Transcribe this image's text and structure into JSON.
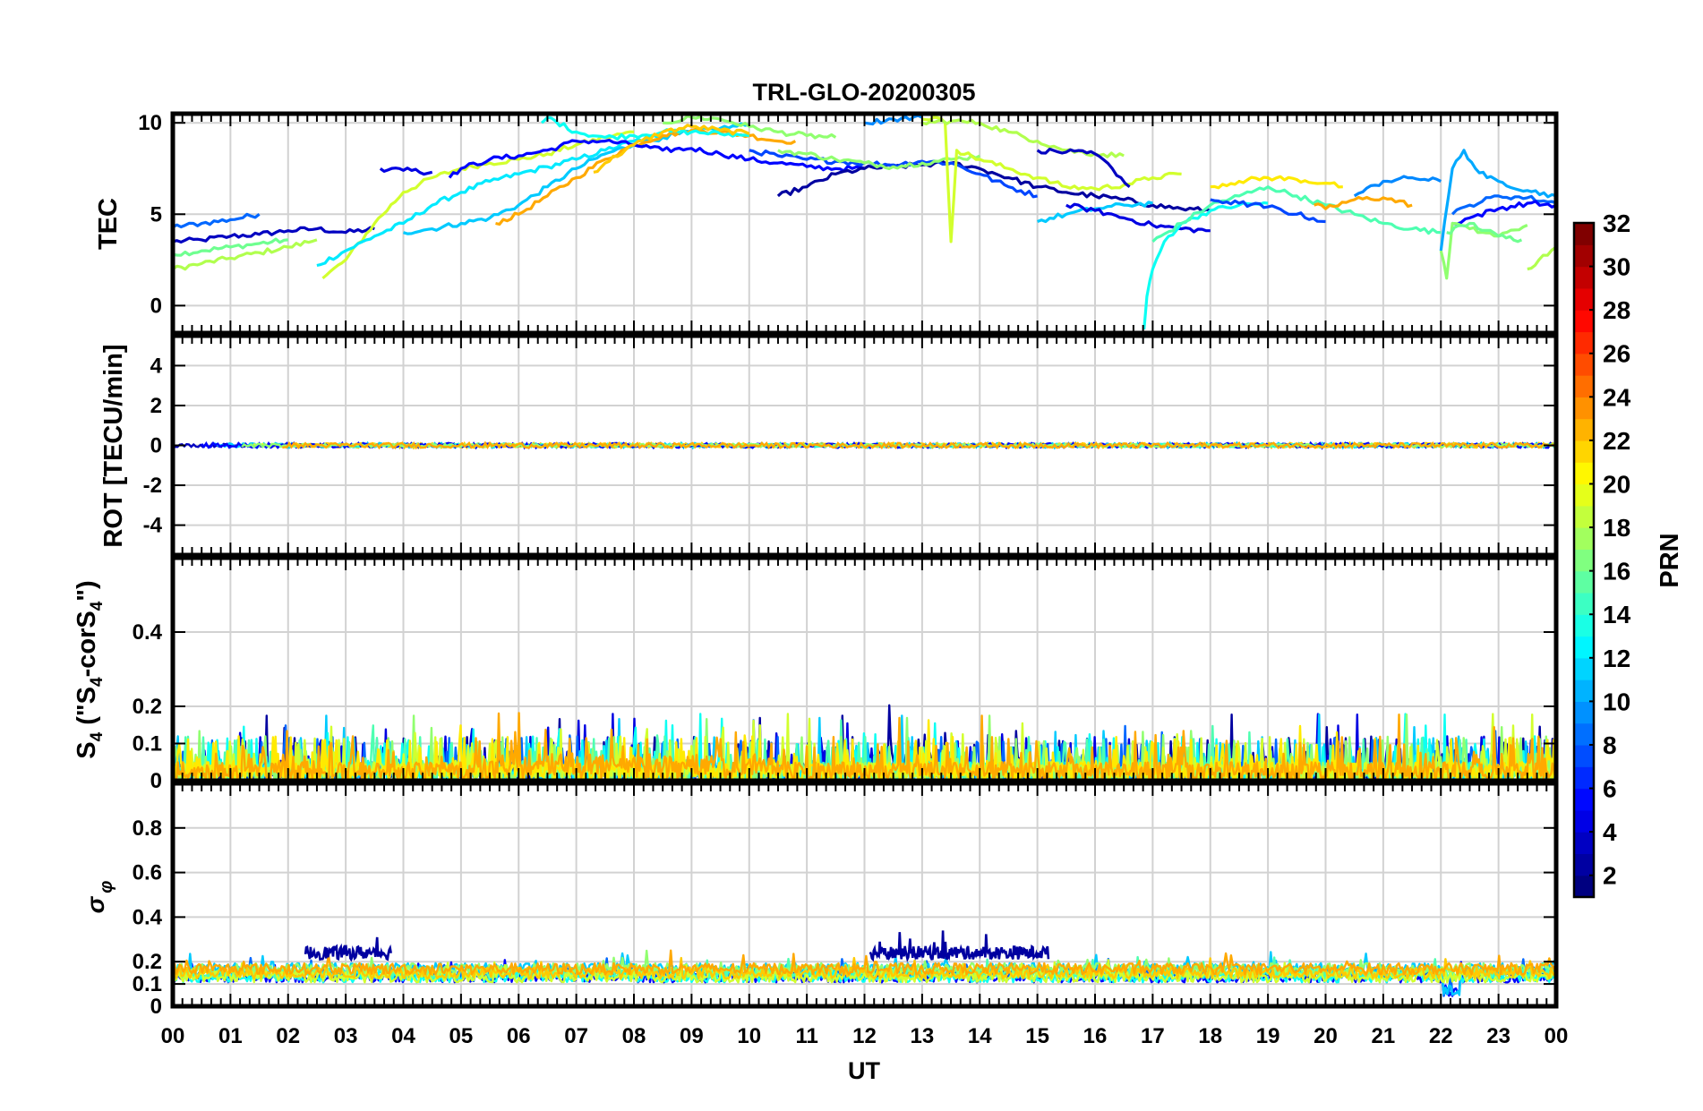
{
  "chart_data": {
    "type": "line",
    "title": "TRL-GLO-20200305",
    "xlabel": "UT",
    "x_tick_labels": [
      "00",
      "01",
      "02",
      "03",
      "04",
      "05",
      "06",
      "07",
      "08",
      "09",
      "10",
      "11",
      "12",
      "13",
      "14",
      "15",
      "16",
      "17",
      "18",
      "19",
      "20",
      "21",
      "22",
      "23",
      "00"
    ],
    "xlim": [
      0,
      24
    ],
    "grid": true,
    "colorbar": {
      "label": "PRN",
      "range": [
        1,
        32
      ],
      "tick_labels": [
        "2",
        "4",
        "6",
        "8",
        "10",
        "12",
        "14",
        "16",
        "18",
        "20",
        "22",
        "24",
        "26",
        "28",
        "30",
        "32"
      ],
      "colormap": "jet"
    },
    "panels": [
      {
        "ylabel": "TEC",
        "ylim": [
          -1.5,
          10.5
        ],
        "y_ticks": [
          0,
          5,
          10
        ],
        "y_tick_labels": [
          "0",
          "5",
          "10"
        ],
        "series": [
          {
            "prn": 3,
            "x": [
              0.0,
              0.5,
              1.0,
              1.5,
              2.0,
              2.5,
              3.0,
              3.5
            ],
            "values": [
              3.5,
              3.6,
              3.8,
              3.9,
              4.1,
              4.2,
              4.0,
              4.2
            ]
          },
          {
            "prn": 8,
            "x": [
              0.0,
              0.5,
              1.0,
              1.5
            ],
            "values": [
              4.3,
              4.5,
              4.7,
              5.0
            ]
          },
          {
            "prn": 16,
            "x": [
              0.0,
              0.5,
              1.0,
              1.5,
              2.0
            ],
            "values": [
              2.8,
              3.0,
              3.2,
              3.4,
              3.6
            ]
          },
          {
            "prn": 18,
            "x": [
              0.0,
              0.5,
              1.0,
              1.5,
              2.0,
              2.5
            ],
            "values": [
              2.0,
              2.3,
              2.6,
              2.9,
              3.2,
              3.6
            ]
          },
          {
            "prn": 4,
            "x": [
              3.6,
              4.0,
              4.5
            ],
            "values": [
              7.5,
              7.4,
              7.3
            ]
          },
          {
            "prn": 19,
            "x": [
              2.6,
              3.0,
              3.5,
              4.0,
              4.5,
              5.0,
              5.5,
              6.0,
              6.5,
              7.0,
              7.5,
              8.0
            ],
            "values": [
              1.5,
              2.5,
              4.5,
              6.2,
              7.0,
              7.5,
              7.8,
              8.0,
              8.3,
              8.8,
              9.2,
              9.5
            ]
          },
          {
            "prn": 12,
            "x": [
              2.5,
              3.0,
              3.5,
              4.0,
              4.5,
              5.0,
              5.5,
              6.0,
              6.5,
              7.0,
              7.5,
              8.0,
              8.5
            ],
            "values": [
              2.2,
              3.0,
              3.8,
              4.5,
              5.5,
              6.2,
              6.8,
              7.2,
              7.6,
              8.0,
              8.5,
              9.0,
              9.3
            ]
          },
          {
            "prn": 11,
            "x": [
              4.0,
              4.5,
              5.0,
              5.5,
              6.0,
              6.5,
              7.0,
              7.5,
              8.0,
              8.5,
              9.0,
              9.5,
              10.0
            ],
            "values": [
              4.0,
              4.2,
              4.5,
              4.8,
              5.5,
              6.5,
              7.5,
              8.3,
              8.8,
              9.2,
              9.5,
              9.7,
              9.9
            ]
          },
          {
            "prn": 23,
            "x": [
              5.6,
              6.0,
              6.5,
              7.0,
              7.5,
              8.0,
              8.5,
              9.0,
              9.5,
              10.0,
              10.5,
              10.8
            ],
            "values": [
              4.5,
              5.0,
              6.0,
              7.0,
              8.0,
              8.8,
              9.3,
              9.6,
              9.5,
              9.3,
              9.0,
              9.0
            ]
          },
          {
            "prn": 5,
            "x": [
              4.8,
              5.0,
              5.5,
              6.0,
              6.5,
              7.0,
              7.5,
              8.0,
              8.5,
              9.0,
              9.5,
              10.0,
              10.5,
              11.0,
              11.5,
              12.0
            ],
            "values": [
              7.0,
              7.5,
              8.0,
              8.2,
              8.5,
              9.0,
              9.0,
              8.8,
              8.5,
              8.6,
              8.3,
              8.0,
              7.8,
              7.6,
              7.5,
              7.5
            ]
          },
          {
            "prn": 13,
            "x": [
              6.4,
              6.5,
              7.0,
              7.5,
              8.0,
              8.5,
              9.0,
              9.5,
              10.0
            ],
            "values": [
              10.0,
              10.3,
              9.5,
              9.2,
              9.3,
              9.5,
              9.5,
              9.4,
              9.3
            ]
          },
          {
            "prn": 22,
            "x": [
              7.3,
              7.5,
              8.0,
              8.5,
              9.0,
              9.5,
              10.0
            ],
            "values": [
              7.3,
              7.8,
              8.8,
              9.5,
              9.8,
              9.6,
              9.4
            ]
          },
          {
            "prn": 17,
            "x": [
              8.5,
              9.0,
              9.5,
              10.0,
              10.5,
              11.0,
              11.5
            ],
            "values": [
              10.0,
              10.3,
              10.2,
              9.8,
              9.5,
              9.3,
              9.2
            ]
          },
          {
            "prn": 2,
            "x": [
              10.5,
              11.0,
              11.5,
              12.0,
              12.5,
              13.0,
              13.5,
              14.0,
              14.5,
              15.0,
              15.5,
              16.0,
              16.5,
              17.0,
              17.5,
              18.0
            ],
            "values": [
              6.0,
              6.5,
              7.2,
              7.5,
              7.6,
              7.7,
              7.8,
              7.5,
              7.0,
              6.5,
              6.2,
              6.0,
              5.8,
              5.5,
              5.3,
              5.2
            ]
          },
          {
            "prn": 7,
            "x": [
              10.0,
              10.5,
              11.0,
              11.5,
              12.0,
              12.5,
              13.0,
              13.5,
              14.0,
              14.5,
              15.0
            ],
            "values": [
              8.5,
              8.2,
              8.0,
              7.9,
              7.8,
              7.7,
              7.9,
              7.8,
              7.2,
              6.5,
              6.0
            ]
          },
          {
            "prn": 9,
            "x": [
              12.0,
              12.5,
              13.0
            ],
            "values": [
              10.0,
              10.2,
              10.3
            ]
          },
          {
            "prn": 17,
            "x": [
              10.5,
              11.0,
              11.5,
              12.0,
              12.5,
              13.0,
              13.5,
              14.0
            ],
            "values": [
              8.5,
              8.3,
              8.0,
              7.8,
              7.6,
              7.8,
              8.0,
              8.2
            ]
          },
          {
            "prn": 19,
            "x": [
              13.0,
              13.2,
              13.4,
              13.5,
              13.6,
              14.0,
              14.5,
              15.0,
              15.5,
              16.0,
              16.5,
              17.0,
              17.5
            ],
            "values": [
              10.2,
              10.3,
              10.0,
              3.5,
              8.5,
              8.0,
              7.5,
              7.0,
              6.5,
              6.4,
              6.6,
              7.0,
              7.2
            ]
          },
          {
            "prn": 18,
            "x": [
              13.0,
              13.5,
              14.0,
              14.5,
              15.0,
              15.5,
              16.0,
              16.5
            ],
            "values": [
              10.0,
              10.1,
              10.0,
              9.5,
              9.0,
              8.5,
              8.3,
              8.2
            ]
          },
          {
            "prn": 3,
            "x": [
              15.0,
              15.5,
              16.0,
              16.3,
              16.6
            ],
            "values": [
              8.5,
              8.4,
              8.3,
              7.5,
              6.5
            ]
          },
          {
            "prn": 11,
            "x": [
              15.0,
              15.5,
              16.0,
              16.5,
              17.0
            ],
            "values": [
              4.6,
              5.0,
              5.3,
              5.5,
              5.6
            ]
          },
          {
            "prn": 4,
            "x": [
              15.5,
              16.0,
              16.5,
              17.0,
              17.5,
              18.0
            ],
            "values": [
              5.5,
              5.2,
              4.8,
              4.4,
              4.2,
              4.1
            ]
          },
          {
            "prn": 13,
            "x": [
              16.85,
              16.9,
              17.0,
              17.2,
              17.5,
              18.0,
              18.5,
              19.0
            ],
            "values": [
              -1.3,
              0.5,
              2.0,
              3.5,
              4.5,
              5.2,
              5.5,
              5.6
            ]
          },
          {
            "prn": 15,
            "x": [
              17.0,
              17.5,
              18.0,
              18.5,
              19.0,
              19.5,
              20.0,
              20.5,
              21.0,
              21.5,
              22.0
            ],
            "values": [
              3.5,
              4.5,
              5.5,
              6.0,
              6.5,
              6.0,
              5.5,
              5.0,
              4.5,
              4.2,
              4.0
            ]
          },
          {
            "prn": 21,
            "x": [
              18.0,
              18.5,
              19.0,
              19.5,
              20.0,
              20.3
            ],
            "values": [
              6.5,
              6.8,
              7.0,
              6.9,
              6.7,
              6.5
            ]
          },
          {
            "prn": 23,
            "x": [
              19.8,
              20.0,
              20.5,
              21.0,
              21.5
            ],
            "values": [
              5.5,
              5.3,
              5.8,
              5.9,
              5.5
            ]
          },
          {
            "prn": 9,
            "x": [
              20.5,
              21.0,
              21.5,
              22.0
            ],
            "values": [
              6.0,
              6.8,
              7.0,
              6.8
            ]
          },
          {
            "prn": 7,
            "x": [
              18.0,
              18.5,
              19.0,
              19.5,
              20.0
            ],
            "values": [
              5.8,
              5.6,
              5.4,
              5.0,
              4.6
            ]
          },
          {
            "prn": 10,
            "x": [
              22.0,
              22.2,
              22.4,
              22.6,
              22.8,
              23.0,
              23.5,
              24.0
            ],
            "values": [
              3.0,
              7.5,
              8.5,
              7.5,
              7.0,
              6.8,
              6.3,
              6.0
            ]
          },
          {
            "prn": 8,
            "x": [
              22.2,
              22.5,
              23.0,
              23.5,
              24.0
            ],
            "values": [
              5.0,
              5.5,
              6.0,
              5.9,
              5.6
            ]
          },
          {
            "prn": 5,
            "x": [
              22.2,
              22.5,
              23.0,
              23.5,
              24.0
            ],
            "values": [
              4.5,
              4.8,
              5.3,
              5.6,
              5.5
            ]
          },
          {
            "prn": 17,
            "x": [
              22.0,
              22.1,
              22.2,
              22.5,
              23.0,
              23.5
            ],
            "values": [
              3.0,
              1.5,
              4.5,
              4.2,
              3.8,
              4.4
            ]
          },
          {
            "prn": 16,
            "x": [
              22.1,
              22.5,
              23.0,
              23.4
            ],
            "values": [
              4.0,
              4.5,
              3.8,
              3.6
            ]
          },
          {
            "prn": 18,
            "x": [
              23.5,
              23.7,
              24.0
            ],
            "values": [
              2.0,
              2.5,
              3.2
            ]
          }
        ]
      },
      {
        "ylabel": "ROT [TECU/min]",
        "ylim": [
          -5.5,
          5.5
        ],
        "y_ticks": [
          -4,
          -2,
          0,
          2,
          4
        ],
        "y_tick_labels": [
          "-4",
          "-2",
          "0",
          "2",
          "4"
        ],
        "mean_value": 0,
        "noise_amplitude": 0.2
      },
      {
        "ylabel": "S4 (\"S4-corS4\")",
        "ylabel_parts": [
          "S",
          "4",
          " (\"S",
          "4",
          "-corS",
          "4",
          "\")"
        ],
        "ylim": [
          0,
          0.6
        ],
        "y_ticks": [
          0,
          0.1,
          0.2,
          0.4
        ],
        "y_tick_labels": [
          "0",
          "0.1",
          "0.2",
          "0.4"
        ],
        "typical_range": [
          0.0,
          0.12
        ],
        "max_spikes": 0.18
      },
      {
        "ylabel": "σ φ",
        "ylabel_symbols": [
          "σ",
          "φ"
        ],
        "ylim": [
          0,
          1.0
        ],
        "y_ticks": [
          0,
          0.1,
          0.2,
          0.4,
          0.6,
          0.8
        ],
        "y_tick_labels": [
          "0",
          "0.1",
          "0.2",
          "0.4",
          "0.6",
          "0.8"
        ],
        "baseline": 0.15,
        "elevated_segments": [
          {
            "prn": 2,
            "x_start": 2.3,
            "x_end": 3.8,
            "level": 0.24,
            "peak": 0.31
          },
          {
            "prn": 2,
            "x_start": 12.1,
            "x_end": 15.2,
            "level": 0.24,
            "peak": 0.34
          }
        ]
      }
    ]
  }
}
